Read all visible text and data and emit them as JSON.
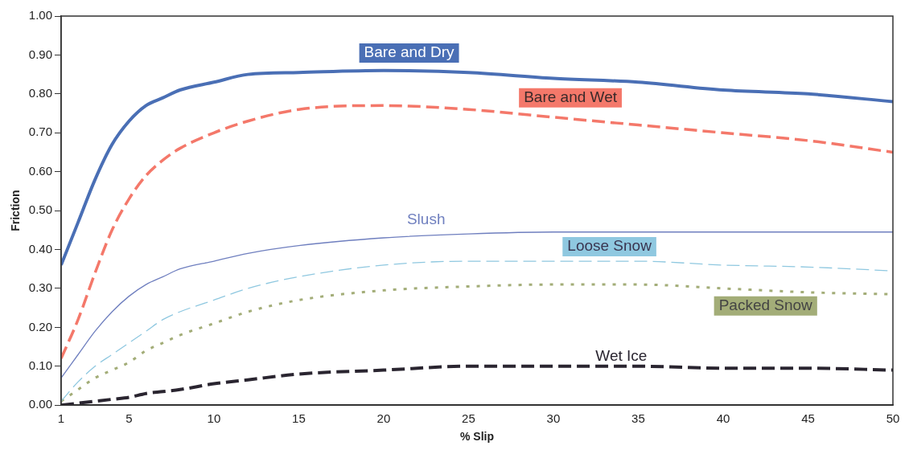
{
  "chart_data": {
    "type": "line",
    "xlabel": "% Slip",
    "ylabel": "Friction",
    "x": [
      1,
      2,
      3,
      4,
      5,
      6,
      7,
      8,
      10,
      12,
      15,
      20,
      25,
      30,
      35,
      40,
      45,
      50
    ],
    "xlim": [
      1,
      50
    ],
    "xticks": [
      1,
      5,
      10,
      15,
      20,
      25,
      30,
      35,
      40,
      45,
      50
    ],
    "ylim": [
      0,
      1
    ],
    "yticks": [
      {
        "value": 0,
        "label": "0.00"
      },
      {
        "value": 0.1,
        "label": "0.10"
      },
      {
        "value": 0.2,
        "label": "0.20"
      },
      {
        "value": 0.3,
        "label": "0.30"
      },
      {
        "value": 0.4,
        "label": "0.40"
      },
      {
        "value": 0.5,
        "label": "0.50"
      },
      {
        "value": 0.6,
        "label": "0.60"
      },
      {
        "value": 0.7,
        "label": "0.70"
      },
      {
        "value": 0.8,
        "label": "0.80"
      },
      {
        "value": 0.9,
        "label": "0.90"
      },
      {
        "value": 1,
        "label": "1.00"
      }
    ],
    "grid": false,
    "legend": false,
    "marker": "none",
    "series": [
      {
        "name": "Bare and Dry",
        "color": "#4a6fb5",
        "line_style": "solid",
        "values": [
          0.36,
          0.47,
          0.58,
          0.67,
          0.73,
          0.77,
          0.79,
          0.81,
          0.83,
          0.85,
          0.855,
          0.86,
          0.855,
          0.84,
          0.83,
          0.81,
          0.8,
          0.78
        ]
      },
      {
        "name": "Bare and Wet",
        "color": "#f4786a",
        "line_style": "dashed",
        "values": [
          0.12,
          0.22,
          0.34,
          0.45,
          0.53,
          0.59,
          0.63,
          0.66,
          0.7,
          0.73,
          0.76,
          0.77,
          0.76,
          0.74,
          0.72,
          0.7,
          0.68,
          0.65
        ]
      },
      {
        "name": "Slush",
        "color": "#6f7fbf",
        "line_style": "solid",
        "values": [
          0.07,
          0.13,
          0.19,
          0.24,
          0.28,
          0.31,
          0.33,
          0.35,
          0.37,
          0.39,
          0.41,
          0.43,
          0.44,
          0.445,
          0.445,
          0.445,
          0.445,
          0.445
        ]
      },
      {
        "name": "Loose Snow",
        "color": "#8fc8e0",
        "line_style": "dashed",
        "values": [
          0.01,
          0.06,
          0.1,
          0.13,
          0.16,
          0.19,
          0.22,
          0.24,
          0.27,
          0.3,
          0.33,
          0.36,
          0.37,
          0.37,
          0.37,
          0.36,
          0.355,
          0.345
        ]
      },
      {
        "name": "Packed Snow",
        "color": "#a3ad78",
        "line_style": "dotted",
        "values": [
          0.01,
          0.04,
          0.07,
          0.09,
          0.11,
          0.14,
          0.16,
          0.18,
          0.21,
          0.24,
          0.27,
          0.295,
          0.305,
          0.31,
          0.31,
          0.3,
          0.29,
          0.285
        ]
      },
      {
        "name": "Wet Ice",
        "color": "#2a2530",
        "line_style": "dashed",
        "values": [
          0,
          0.005,
          0.01,
          0.015,
          0.02,
          0.03,
          0.035,
          0.04,
          0.055,
          0.065,
          0.08,
          0.09,
          0.1,
          0.1,
          0.1,
          0.095,
          0.095,
          0.09
        ]
      }
    ]
  }
}
